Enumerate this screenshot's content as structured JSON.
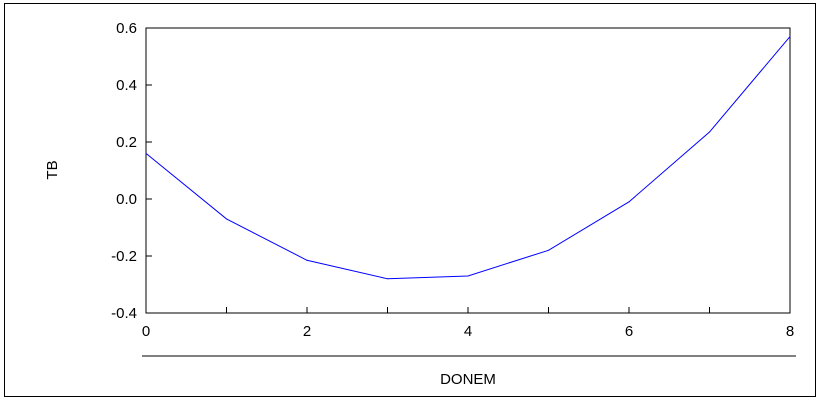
{
  "chart_data": {
    "type": "line",
    "title": "",
    "xlabel": "DONEM",
    "ylabel": "TB",
    "x": [
      0,
      1,
      2,
      3,
      4,
      5,
      6,
      7,
      8
    ],
    "series": [
      {
        "values": [
          0.16,
          -0.07,
          -0.215,
          -0.28,
          -0.27,
          -0.18,
          -0.01,
          0.235,
          0.57
        ],
        "color": "#0000ff"
      }
    ],
    "xlim": [
      0,
      8
    ],
    "ylim": [
      -0.4,
      0.6
    ],
    "xticks": [
      0,
      2,
      4,
      6,
      8
    ],
    "xtick_labels": [
      "0",
      "2",
      "4",
      "6",
      "8"
    ],
    "yticks": [
      -0.4,
      -0.2,
      0.0,
      0.2,
      0.4,
      0.6
    ],
    "ytick_labels": [
      "-0.4",
      "-0.2",
      "0.0",
      "0.2",
      "0.4",
      "0.6"
    ],
    "grid": false,
    "legend": "none"
  }
}
